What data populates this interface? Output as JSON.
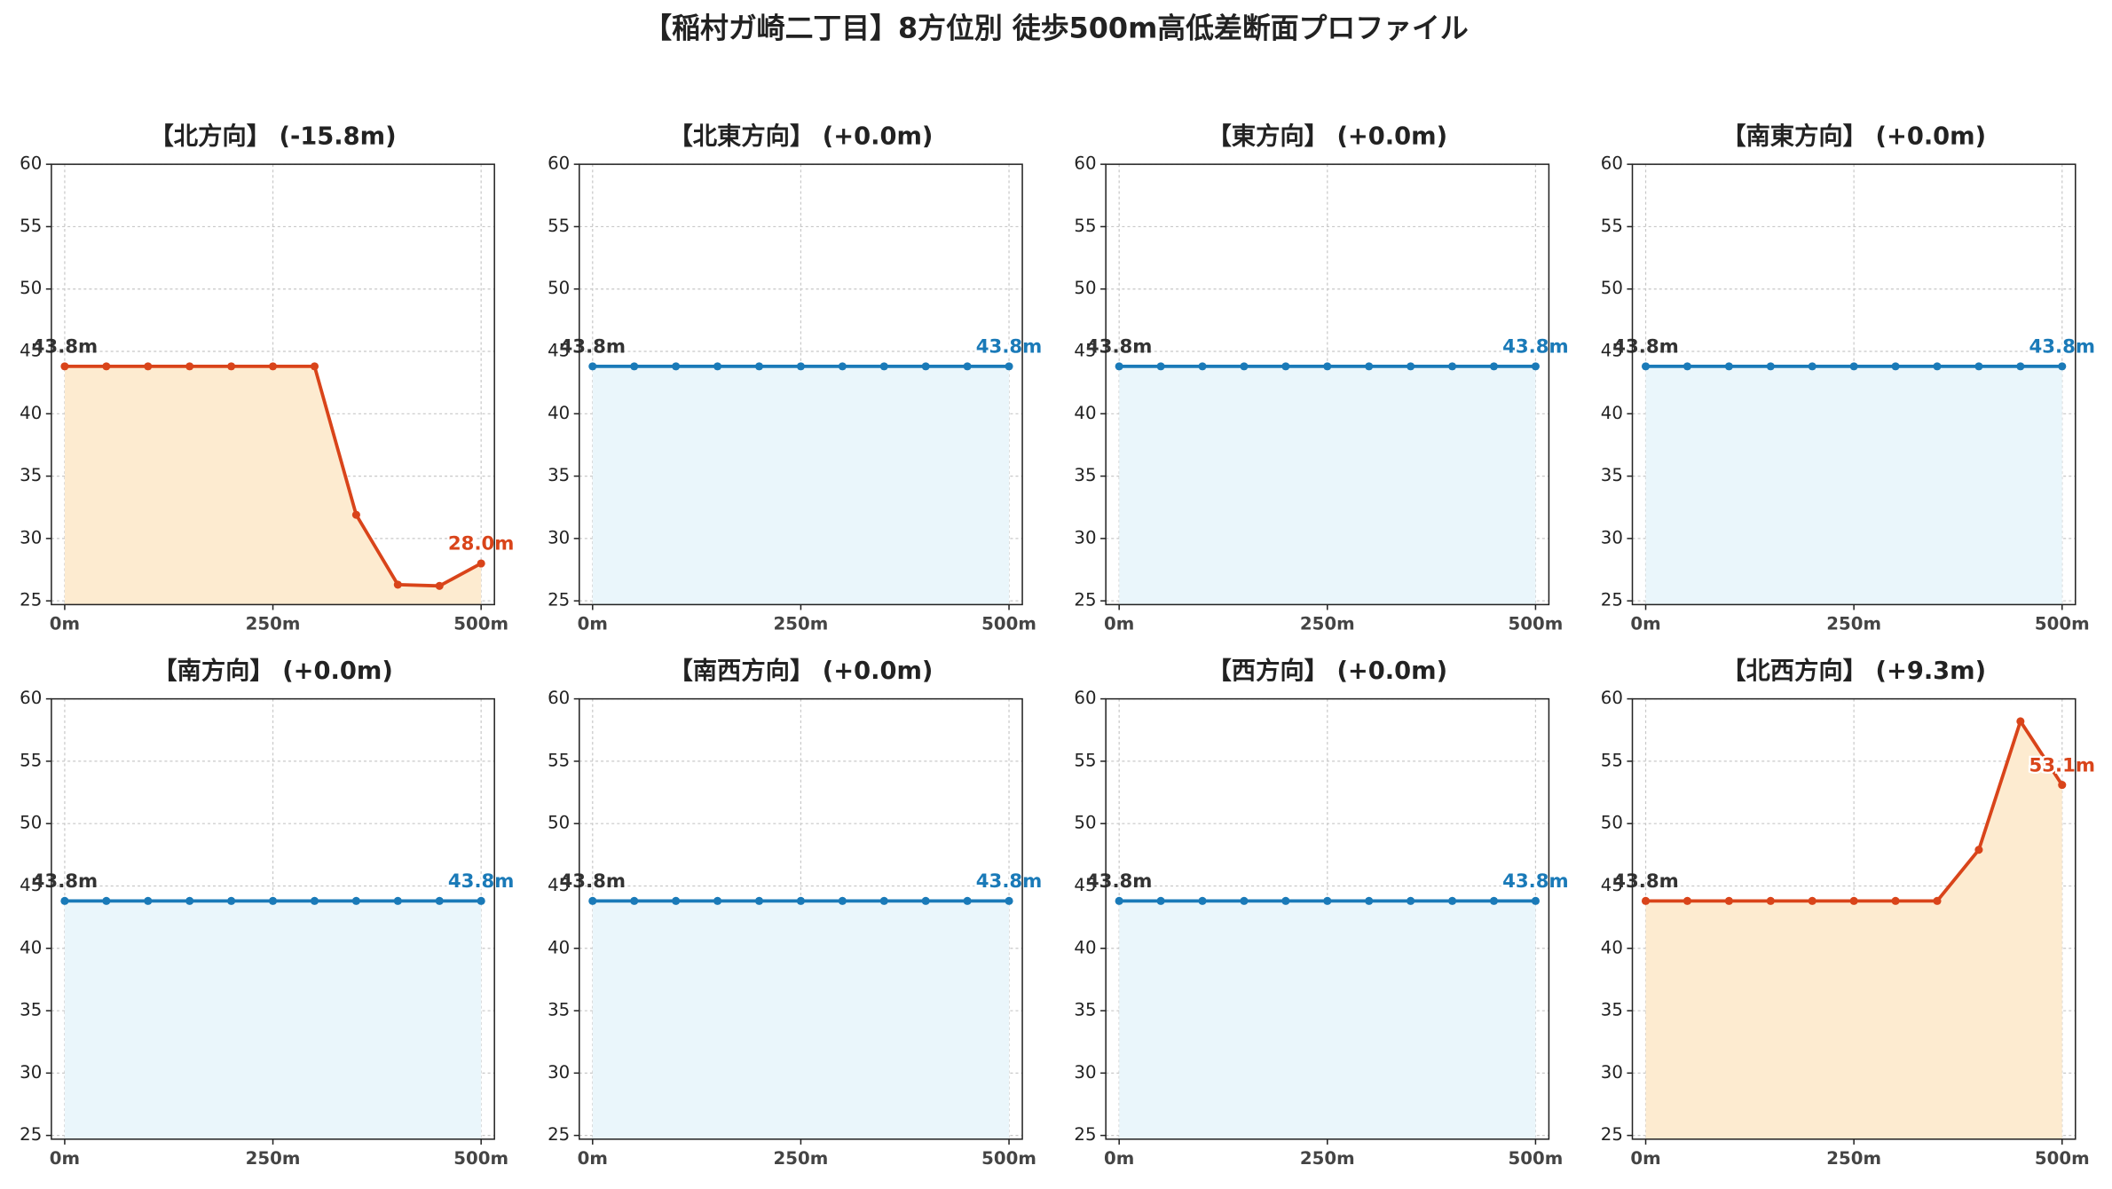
{
  "title": "【稲村ガ崎二丁目】8方位別 徒歩500m高低差断面プロファイル",
  "chart_data": [
    {
      "type": "line",
      "title": "【北方向】 (-15.8m)",
      "x": [
        0,
        50,
        100,
        150,
        200,
        250,
        300,
        350,
        400,
        450,
        500
      ],
      "values": [
        43.8,
        43.8,
        43.8,
        43.8,
        43.8,
        43.8,
        43.8,
        31.9,
        26.3,
        26.2,
        28.0
      ],
      "value_labels": [
        "43.8m",
        null,
        null,
        null,
        null,
        null,
        null,
        null,
        null,
        null,
        "28.0m"
      ],
      "color": "#d9441a",
      "fill_color": "#fdebd0",
      "xlim": [
        -16,
        516
      ],
      "ylim": [
        24.7,
        60
      ],
      "xticks": [
        {
          "value": 0,
          "label": "0m"
        },
        {
          "value": 250,
          "label": "250m"
        },
        {
          "value": 500,
          "label": "500m"
        }
      ],
      "yticks": [
        25,
        30,
        35,
        40,
        45,
        50,
        55,
        60
      ],
      "grid": true
    },
    {
      "type": "line",
      "title": "【北東方向】 (+0.0m)",
      "x": [
        0,
        50,
        100,
        150,
        200,
        250,
        300,
        350,
        400,
        450,
        500
      ],
      "values": [
        43.8,
        43.8,
        43.8,
        43.8,
        43.8,
        43.8,
        43.8,
        43.8,
        43.8,
        43.8,
        43.8
      ],
      "value_labels": [
        "43.8m",
        null,
        null,
        null,
        null,
        null,
        null,
        null,
        null,
        null,
        "43.8m"
      ],
      "color": "#1a7ab8",
      "fill_color": "#eaf6fb",
      "xlim": [
        -16,
        516
      ],
      "ylim": [
        24.7,
        60
      ],
      "xticks": [
        {
          "value": 0,
          "label": "0m"
        },
        {
          "value": 250,
          "label": "250m"
        },
        {
          "value": 500,
          "label": "500m"
        }
      ],
      "yticks": [
        25,
        30,
        35,
        40,
        45,
        50,
        55,
        60
      ],
      "grid": true
    },
    {
      "type": "line",
      "title": "【東方向】 (+0.0m)",
      "x": [
        0,
        50,
        100,
        150,
        200,
        250,
        300,
        350,
        400,
        450,
        500
      ],
      "values": [
        43.8,
        43.8,
        43.8,
        43.8,
        43.8,
        43.8,
        43.8,
        43.8,
        43.8,
        43.8,
        43.8
      ],
      "value_labels": [
        "43.8m",
        null,
        null,
        null,
        null,
        null,
        null,
        null,
        null,
        null,
        "43.8m"
      ],
      "color": "#1a7ab8",
      "fill_color": "#eaf6fb",
      "xlim": [
        -16,
        516
      ],
      "ylim": [
        24.7,
        60
      ],
      "xticks": [
        {
          "value": 0,
          "label": "0m"
        },
        {
          "value": 250,
          "label": "250m"
        },
        {
          "value": 500,
          "label": "500m"
        }
      ],
      "yticks": [
        25,
        30,
        35,
        40,
        45,
        50,
        55,
        60
      ],
      "grid": true
    },
    {
      "type": "line",
      "title": "【南東方向】 (+0.0m)",
      "x": [
        0,
        50,
        100,
        150,
        200,
        250,
        300,
        350,
        400,
        450,
        500
      ],
      "values": [
        43.8,
        43.8,
        43.8,
        43.8,
        43.8,
        43.8,
        43.8,
        43.8,
        43.8,
        43.8,
        43.8
      ],
      "value_labels": [
        "43.8m",
        null,
        null,
        null,
        null,
        null,
        null,
        null,
        null,
        null,
        "43.8m"
      ],
      "color": "#1a7ab8",
      "fill_color": "#eaf6fb",
      "xlim": [
        -16,
        516
      ],
      "ylim": [
        24.7,
        60
      ],
      "xticks": [
        {
          "value": 0,
          "label": "0m"
        },
        {
          "value": 250,
          "label": "250m"
        },
        {
          "value": 500,
          "label": "500m"
        }
      ],
      "yticks": [
        25,
        30,
        35,
        40,
        45,
        50,
        55,
        60
      ],
      "grid": true
    },
    {
      "type": "line",
      "title": "【南方向】 (+0.0m)",
      "x": [
        0,
        50,
        100,
        150,
        200,
        250,
        300,
        350,
        400,
        450,
        500
      ],
      "values": [
        43.8,
        43.8,
        43.8,
        43.8,
        43.8,
        43.8,
        43.8,
        43.8,
        43.8,
        43.8,
        43.8
      ],
      "value_labels": [
        "43.8m",
        null,
        null,
        null,
        null,
        null,
        null,
        null,
        null,
        null,
        "43.8m"
      ],
      "color": "#1a7ab8",
      "fill_color": "#eaf6fb",
      "xlim": [
        -16,
        516
      ],
      "ylim": [
        24.7,
        60
      ],
      "xticks": [
        {
          "value": 0,
          "label": "0m"
        },
        {
          "value": 250,
          "label": "250m"
        },
        {
          "value": 500,
          "label": "500m"
        }
      ],
      "yticks": [
        25,
        30,
        35,
        40,
        45,
        50,
        55,
        60
      ],
      "grid": true
    },
    {
      "type": "line",
      "title": "【南西方向】 (+0.0m)",
      "x": [
        0,
        50,
        100,
        150,
        200,
        250,
        300,
        350,
        400,
        450,
        500
      ],
      "values": [
        43.8,
        43.8,
        43.8,
        43.8,
        43.8,
        43.8,
        43.8,
        43.8,
        43.8,
        43.8,
        43.8
      ],
      "value_labels": [
        "43.8m",
        null,
        null,
        null,
        null,
        null,
        null,
        null,
        null,
        null,
        "43.8m"
      ],
      "color": "#1a7ab8",
      "fill_color": "#eaf6fb",
      "xlim": [
        -16,
        516
      ],
      "ylim": [
        24.7,
        60
      ],
      "xticks": [
        {
          "value": 0,
          "label": "0m"
        },
        {
          "value": 250,
          "label": "250m"
        },
        {
          "value": 500,
          "label": "500m"
        }
      ],
      "yticks": [
        25,
        30,
        35,
        40,
        45,
        50,
        55,
        60
      ],
      "grid": true
    },
    {
      "type": "line",
      "title": "【西方向】 (+0.0m)",
      "x": [
        0,
        50,
        100,
        150,
        200,
        250,
        300,
        350,
        400,
        450,
        500
      ],
      "values": [
        43.8,
        43.8,
        43.8,
        43.8,
        43.8,
        43.8,
        43.8,
        43.8,
        43.8,
        43.8,
        43.8
      ],
      "value_labels": [
        "43.8m",
        null,
        null,
        null,
        null,
        null,
        null,
        null,
        null,
        null,
        "43.8m"
      ],
      "color": "#1a7ab8",
      "fill_color": "#eaf6fb",
      "xlim": [
        -16,
        516
      ],
      "ylim": [
        24.7,
        60
      ],
      "xticks": [
        {
          "value": 0,
          "label": "0m"
        },
        {
          "value": 250,
          "label": "250m"
        },
        {
          "value": 500,
          "label": "500m"
        }
      ],
      "yticks": [
        25,
        30,
        35,
        40,
        45,
        50,
        55,
        60
      ],
      "grid": true
    },
    {
      "type": "line",
      "title": "【北西方向】 (+9.3m)",
      "x": [
        0,
        50,
        100,
        150,
        200,
        250,
        300,
        350,
        400,
        450,
        500
      ],
      "values": [
        43.8,
        43.8,
        43.8,
        43.8,
        43.8,
        43.8,
        43.8,
        43.8,
        47.9,
        58.2,
        53.1
      ],
      "value_labels": [
        "43.8m",
        null,
        null,
        null,
        null,
        null,
        null,
        null,
        null,
        null,
        "53.1m"
      ],
      "color": "#d9441a",
      "fill_color": "#fdebd0",
      "xlim": [
        -16,
        516
      ],
      "ylim": [
        24.7,
        60
      ],
      "xticks": [
        {
          "value": 0,
          "label": "0m"
        },
        {
          "value": 250,
          "label": "250m"
        },
        {
          "value": 500,
          "label": "500m"
        }
      ],
      "yticks": [
        25,
        30,
        35,
        40,
        45,
        50,
        55,
        60
      ],
      "grid": true
    }
  ]
}
